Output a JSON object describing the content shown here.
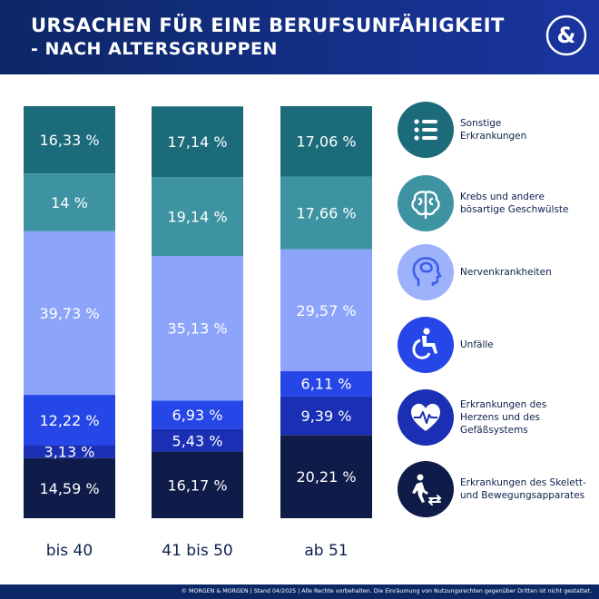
{
  "header": {
    "title_line1": "URSACHEN FÜR EINE BERUFSUNFÄHIGKEIT",
    "title_line2": "- NACH ALTERSGRUPPEN",
    "logo_text": "&"
  },
  "footer": {
    "text": "© MORGEN & MORGEN | Stand 04/2025 | Alle Rechte vorbehalten. Die Einräumung von Nutzungsrechten gegenüber Dritten ist nicht gestattet."
  },
  "legend": [
    {
      "label": "Sonstige\nErkrankungen",
      "icon": "list-icon",
      "color": "#1b6b7b"
    },
    {
      "label": "Krebs und andere\nbösartige Geschwülste",
      "icon": "brain-icon",
      "color": "#3e93a3"
    },
    {
      "label": "Nervenkrankheiten",
      "icon": "head-icon",
      "color": "#8da4fb"
    },
    {
      "label": "Unfälle",
      "icon": "wheelchair-icon",
      "color": "#2746e8"
    },
    {
      "label": "Erkrankungen des\nHerzens und des\nGefäßsystems",
      "icon": "heart-icon",
      "color": "#1a2fb3"
    },
    {
      "label": "Erkrankungen des Skelett-\nund Bewegungsapparates",
      "icon": "walking-icon",
      "color": "#0f1b48"
    }
  ],
  "chart_data": {
    "type": "bar",
    "stacked": true,
    "categories": [
      "bis 40",
      "41 bis 50",
      "ab 51"
    ],
    "series": [
      {
        "name": "Erkrankungen des Skelett- und Bewegungsapparates",
        "values": [
          14.59,
          16.17,
          20.21
        ],
        "labels": [
          "14,59 %",
          "16,17 %",
          "20,21 %"
        ],
        "color": "#0f1b48"
      },
      {
        "name": "Erkrankungen des Herzens und des Gefäßsystems",
        "values": [
          3.13,
          5.43,
          9.39
        ],
        "labels": [
          "3,13 %",
          "5,43 %",
          "9,39 %"
        ],
        "color": "#1a2fb3"
      },
      {
        "name": "Unfälle",
        "values": [
          12.22,
          6.93,
          6.11
        ],
        "labels": [
          "12,22 %",
          "6,93 %",
          "6,11 %"
        ],
        "color": "#2746e8"
      },
      {
        "name": "Nervenkrankheiten",
        "values": [
          39.73,
          35.13,
          29.57
        ],
        "labels": [
          "39,73 %",
          "35,13 %",
          "29,57 %"
        ],
        "color": "#8da4fb"
      },
      {
        "name": "Krebs und andere bösartige Geschwülste",
        "values": [
          14,
          19.14,
          17.66
        ],
        "labels": [
          "14 %",
          "19,14 %",
          "17,66 %"
        ],
        "color": "#3e93a3"
      },
      {
        "name": "Sonstige Erkrankungen",
        "values": [
          16.33,
          17.14,
          17.06
        ],
        "labels": [
          "16,33 %",
          "17,14 %",
          "17,06 %"
        ],
        "color": "#1b6b7b"
      }
    ],
    "ylim": [
      0,
      100
    ]
  }
}
